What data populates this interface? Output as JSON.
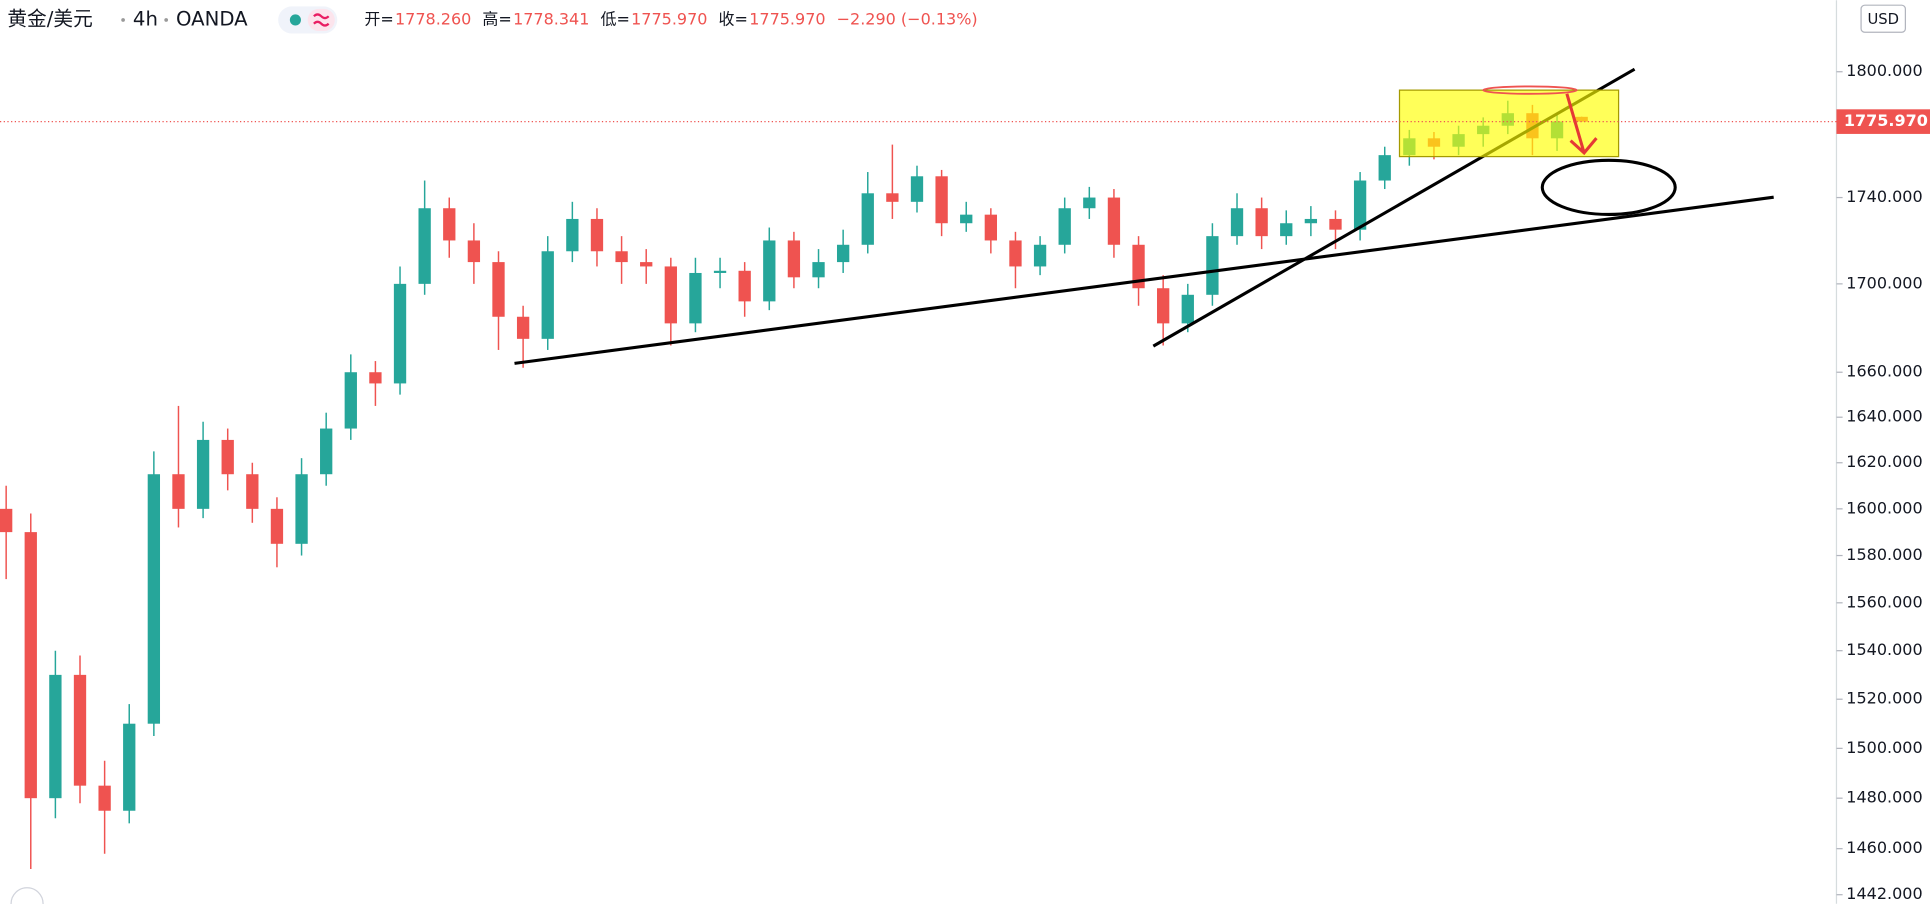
{
  "chart_data": {
    "type": "candlestick",
    "legend": {
      "symbol": "黄金/美元",
      "interval": "4h",
      "exchange": "OANDA",
      "open_label": "开=",
      "open": "1778.260",
      "high_label": "高=",
      "high": "1778.341",
      "low_label": "低=",
      "low": "1775.970",
      "close_label": "收=",
      "close": "1775.970",
      "change": "−2.290 (−0.13%)"
    },
    "currency": "USD",
    "up_color": "#26a69a",
    "down_color": "#ef5350",
    "log_scale": true,
    "ylim": [
      1438.5,
      1835
    ],
    "yticks": [
      {
        "value": 1442,
        "label": "1442.000"
      },
      {
        "value": 1460,
        "label": "1460.000"
      },
      {
        "value": 1480,
        "label": "1480.000"
      },
      {
        "value": 1500,
        "label": "1500.000"
      },
      {
        "value": 1520,
        "label": "1520.000"
      },
      {
        "value": 1540,
        "label": "1540.000"
      },
      {
        "value": 1560,
        "label": "1560.000"
      },
      {
        "value": 1580,
        "label": "1580.000"
      },
      {
        "value": 1600,
        "label": "1600.000"
      },
      {
        "value": 1620,
        "label": "1620.000"
      },
      {
        "value": 1640,
        "label": "1640.000"
      },
      {
        "value": 1660,
        "label": "1660.000"
      },
      {
        "value": 1700,
        "label": "1700.000"
      },
      {
        "value": 1740,
        "label": "1740.000"
      },
      {
        "value": 1800,
        "label": "1800.000"
      }
    ],
    "last_price": {
      "value": 1775.97,
      "label": "1775.970",
      "color": "#ef5350"
    },
    "open": [
      1600,
      1590,
      1480,
      1530,
      1485,
      1475,
      1510,
      1615,
      1600,
      1630,
      1615,
      1600,
      1585,
      1615,
      1635,
      1660,
      1655,
      1700,
      1735,
      1720,
      1710,
      1685,
      1675,
      1715,
      1730,
      1715,
      1710,
      1708,
      1682,
      1705,
      1706,
      1692,
      1720,
      1703,
      1710,
      1718,
      1742,
      1738,
      1750,
      1728,
      1732,
      1720,
      1708,
      1718,
      1735,
      1740,
      1718,
      1698,
      1682,
      1695,
      1722,
      1735,
      1722,
      1728,
      1730,
      1725,
      1748,
      1760,
      1768,
      1764,
      1770,
      1774,
      1780,
      1768,
      1778.26
    ],
    "high": [
      1610,
      1598,
      1540,
      1538,
      1495,
      1518,
      1625,
      1645,
      1638,
      1635,
      1620,
      1605,
      1622,
      1642,
      1668,
      1665,
      1708,
      1748,
      1740,
      1728,
      1715,
      1690,
      1722,
      1738,
      1735,
      1722,
      1716,
      1712,
      1712,
      1712,
      1710,
      1726,
      1724,
      1716,
      1725,
      1752,
      1765,
      1755,
      1753,
      1738,
      1735,
      1724,
      1722,
      1740,
      1745,
      1744,
      1722,
      1704,
      1700,
      1728,
      1742,
      1740,
      1734,
      1736,
      1734,
      1752,
      1764,
      1772,
      1771,
      1774,
      1778,
      1786,
      1784,
      1780,
      1778.341
    ],
    "low": [
      1570,
      1452,
      1472,
      1478,
      1458,
      1470,
      1505,
      1592,
      1596,
      1608,
      1594,
      1575,
      1580,
      1610,
      1630,
      1645,
      1650,
      1695,
      1712,
      1700,
      1670,
      1662,
      1670,
      1710,
      1708,
      1700,
      1700,
      1672,
      1678,
      1698,
      1685,
      1688,
      1698,
      1698,
      1705,
      1714,
      1730,
      1733,
      1722,
      1724,
      1714,
      1698,
      1704,
      1714,
      1730,
      1712,
      1690,
      1672,
      1678,
      1690,
      1718,
      1716,
      1718,
      1722,
      1716,
      1720,
      1744,
      1755,
      1758,
      1760,
      1764,
      1770,
      1760,
      1762,
      1775.97
    ],
    "close": [
      1590,
      1480,
      1530,
      1485,
      1475,
      1510,
      1615,
      1600,
      1630,
      1615,
      1600,
      1585,
      1615,
      1635,
      1660,
      1655,
      1700,
      1735,
      1720,
      1710,
      1685,
      1675,
      1715,
      1730,
      1715,
      1710,
      1708,
      1682,
      1705,
      1706,
      1692,
      1720,
      1703,
      1710,
      1718,
      1742,
      1738,
      1750,
      1728,
      1732,
      1720,
      1708,
      1718,
      1735,
      1740,
      1718,
      1698,
      1682,
      1695,
      1722,
      1735,
      1722,
      1728,
      1730,
      1725,
      1748,
      1760,
      1768,
      1764,
      1770,
      1774,
      1780,
      1768,
      1776,
      1775.97
    ]
  }
}
